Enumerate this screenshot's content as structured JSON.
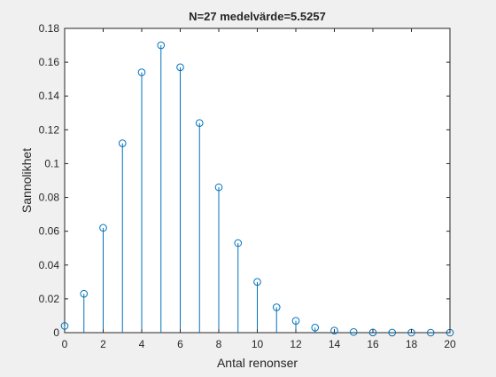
{
  "chart_data": {
    "type": "stem",
    "title": "N=27   medelvärde=5.5257",
    "xlabel": "Antal renonser",
    "ylabel": "Sannolikhet",
    "xlim": [
      0,
      20
    ],
    "ylim": [
      0,
      0.18
    ],
    "xticks": [
      "0",
      "2",
      "4",
      "6",
      "8",
      "10",
      "12",
      "14",
      "16",
      "18",
      "20"
    ],
    "yticks": [
      "0",
      "0.02",
      "0.04",
      "0.06",
      "0.08",
      "0.1",
      "0.12",
      "0.14",
      "0.16",
      "0.18"
    ],
    "x": [
      0,
      1,
      2,
      3,
      4,
      5,
      6,
      7,
      8,
      9,
      10,
      11,
      12,
      13,
      14,
      15,
      16,
      17,
      18,
      19,
      20
    ],
    "values": [
      0.004,
      0.023,
      0.062,
      0.112,
      0.154,
      0.17,
      0.157,
      0.124,
      0.086,
      0.053,
      0.03,
      0.015,
      0.007,
      0.003,
      0.0012,
      0.0004,
      0.0001,
      3e-05,
      1e-05,
      0,
      0
    ],
    "grid": false,
    "colors": {
      "stem": "#0072BD",
      "axes": "#262626",
      "plot_bg": "#ffffff",
      "figure_bg": "#f0f0f0"
    }
  }
}
